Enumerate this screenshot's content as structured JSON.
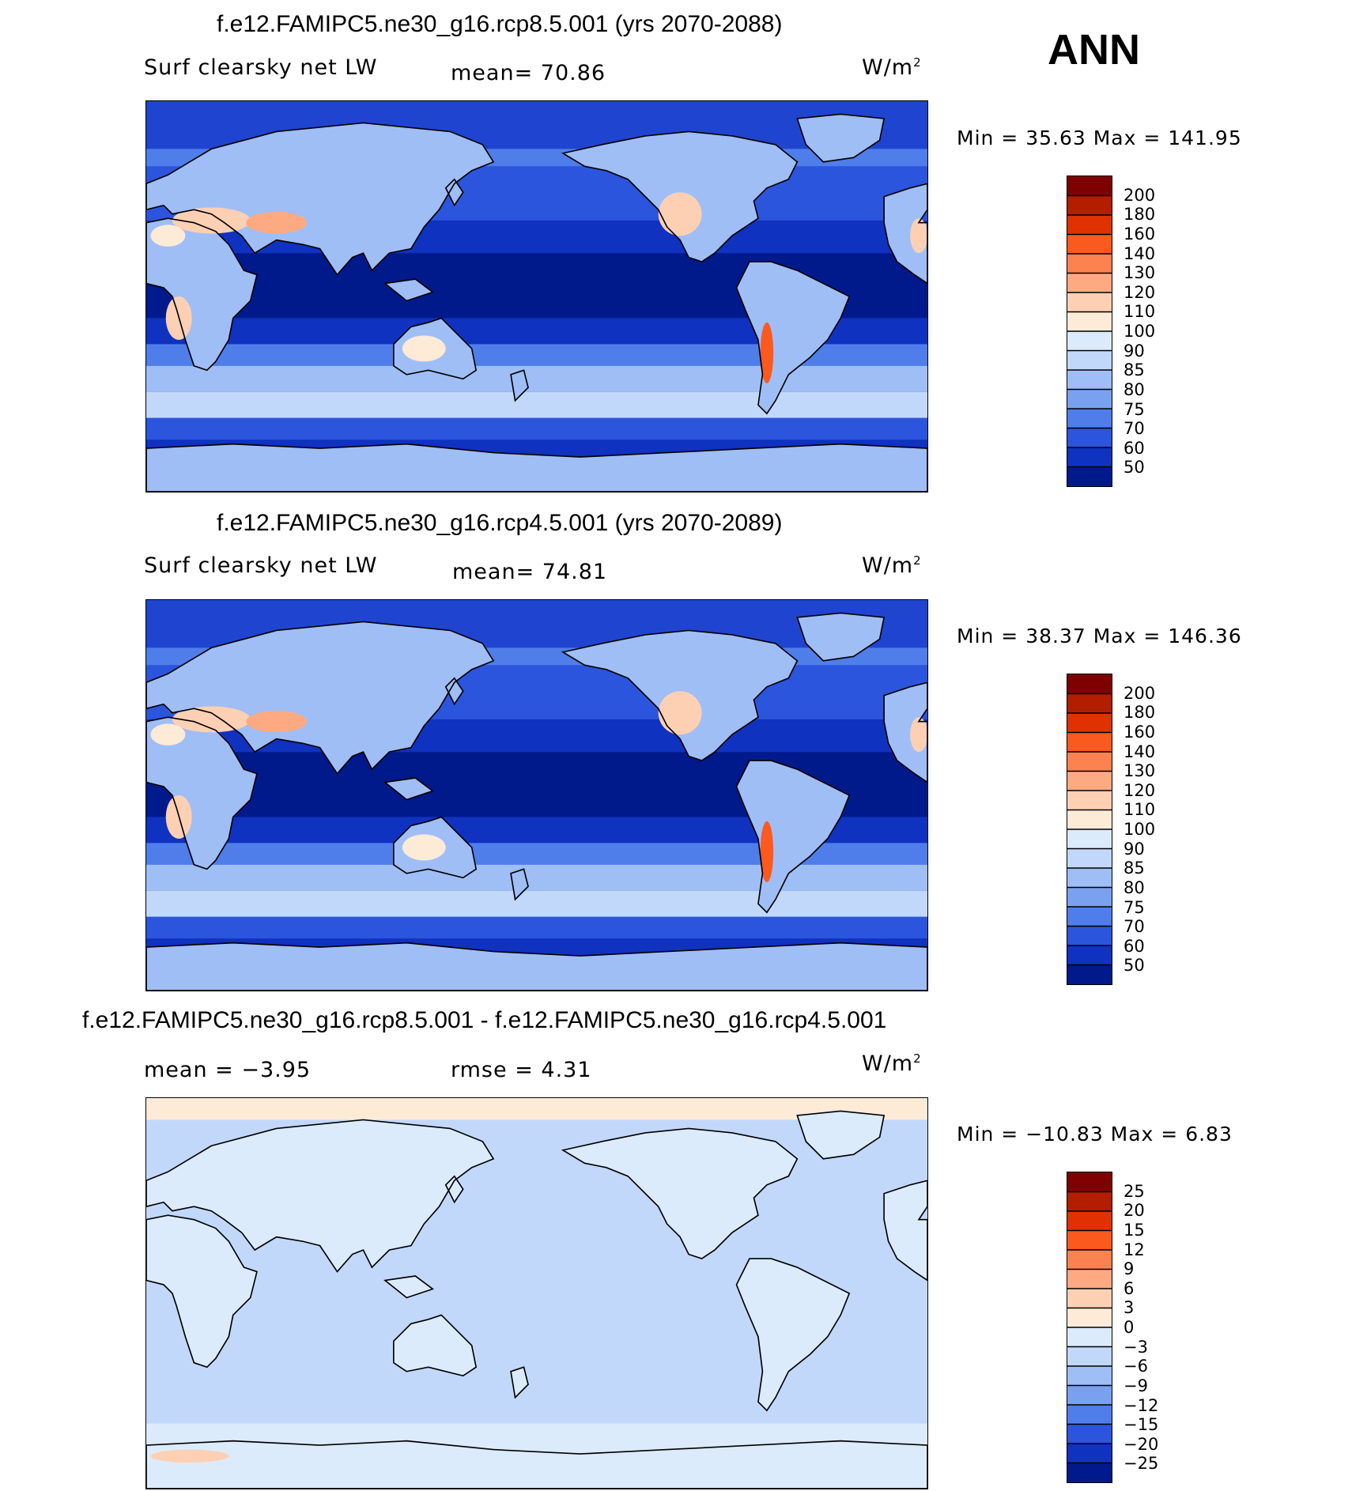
{
  "season": "ANN",
  "units": {
    "base": "W/m",
    "exp": "2"
  },
  "panels": [
    {
      "id": "p1",
      "title": "f.e12.FAMIPC5.ne30_g16.rcp8.5.001 (yrs 2070-2088)",
      "variable": "Surf clearsky net LW",
      "mean_text": "mean=   70.86",
      "minmax_text": "Min =   35.63 Max = 141.95",
      "field": "absolute",
      "colorbar": {
        "levels": [
          "200",
          "180",
          "160",
          "140",
          "130",
          "120",
          "110",
          "100",
          "90",
          "85",
          "80",
          "75",
          "70",
          "60",
          "50"
        ],
        "colors": [
          "#7f0000",
          "#b41e00",
          "#e03200",
          "#fa5a1e",
          "#fc8250",
          "#fdaa82",
          "#fdd0b4",
          "#fdebd7",
          "#dcebfc",
          "#c2d8fa",
          "#9fbef6",
          "#7aa1f0",
          "#4f7eea",
          "#2b55dc",
          "#0f32c0",
          "#001a8c"
        ]
      }
    },
    {
      "id": "p2",
      "title": "f.e12.FAMIPC5.ne30_g16.rcp4.5.001 (yrs 2070-2089)",
      "variable": "Surf clearsky net LW",
      "mean_text": "mean=   74.81",
      "minmax_text": "Min =   38.37 Max = 146.36",
      "field": "absolute",
      "colorbar": {
        "levels": [
          "200",
          "180",
          "160",
          "140",
          "130",
          "120",
          "110",
          "100",
          "90",
          "85",
          "80",
          "75",
          "70",
          "60",
          "50"
        ],
        "colors": [
          "#7f0000",
          "#b41e00",
          "#e03200",
          "#fa5a1e",
          "#fc8250",
          "#fdaa82",
          "#fdd0b4",
          "#fdebd7",
          "#dcebfc",
          "#c2d8fa",
          "#9fbef6",
          "#7aa1f0",
          "#4f7eea",
          "#2b55dc",
          "#0f32c0",
          "#001a8c"
        ]
      }
    },
    {
      "id": "p3",
      "title": "f.e12.FAMIPC5.ne30_g16.rcp8.5.001 - f.e12.FAMIPC5.ne30_g16.rcp4.5.001",
      "mean_text": "mean =   −3.95",
      "rmse_text": "rmse =    4.31",
      "minmax_text": "Min = −10.83 Max =    6.83",
      "field": "difference",
      "colorbar": {
        "levels": [
          "25",
          "20",
          "15",
          "12",
          "9",
          "6",
          "3",
          "0",
          "−3",
          "−6",
          "−9",
          "−12",
          "−15",
          "−20",
          "−25"
        ],
        "colors": [
          "#7f0000",
          "#b41e00",
          "#e03200",
          "#fa5a1e",
          "#fc8250",
          "#fdaa82",
          "#fdd0b4",
          "#fdebd7",
          "#dcebfc",
          "#c2d8fa",
          "#9fbef6",
          "#7aa1f0",
          "#4f7eea",
          "#2b55dc",
          "#0f32c0",
          "#001a8c"
        ]
      }
    }
  ]
}
